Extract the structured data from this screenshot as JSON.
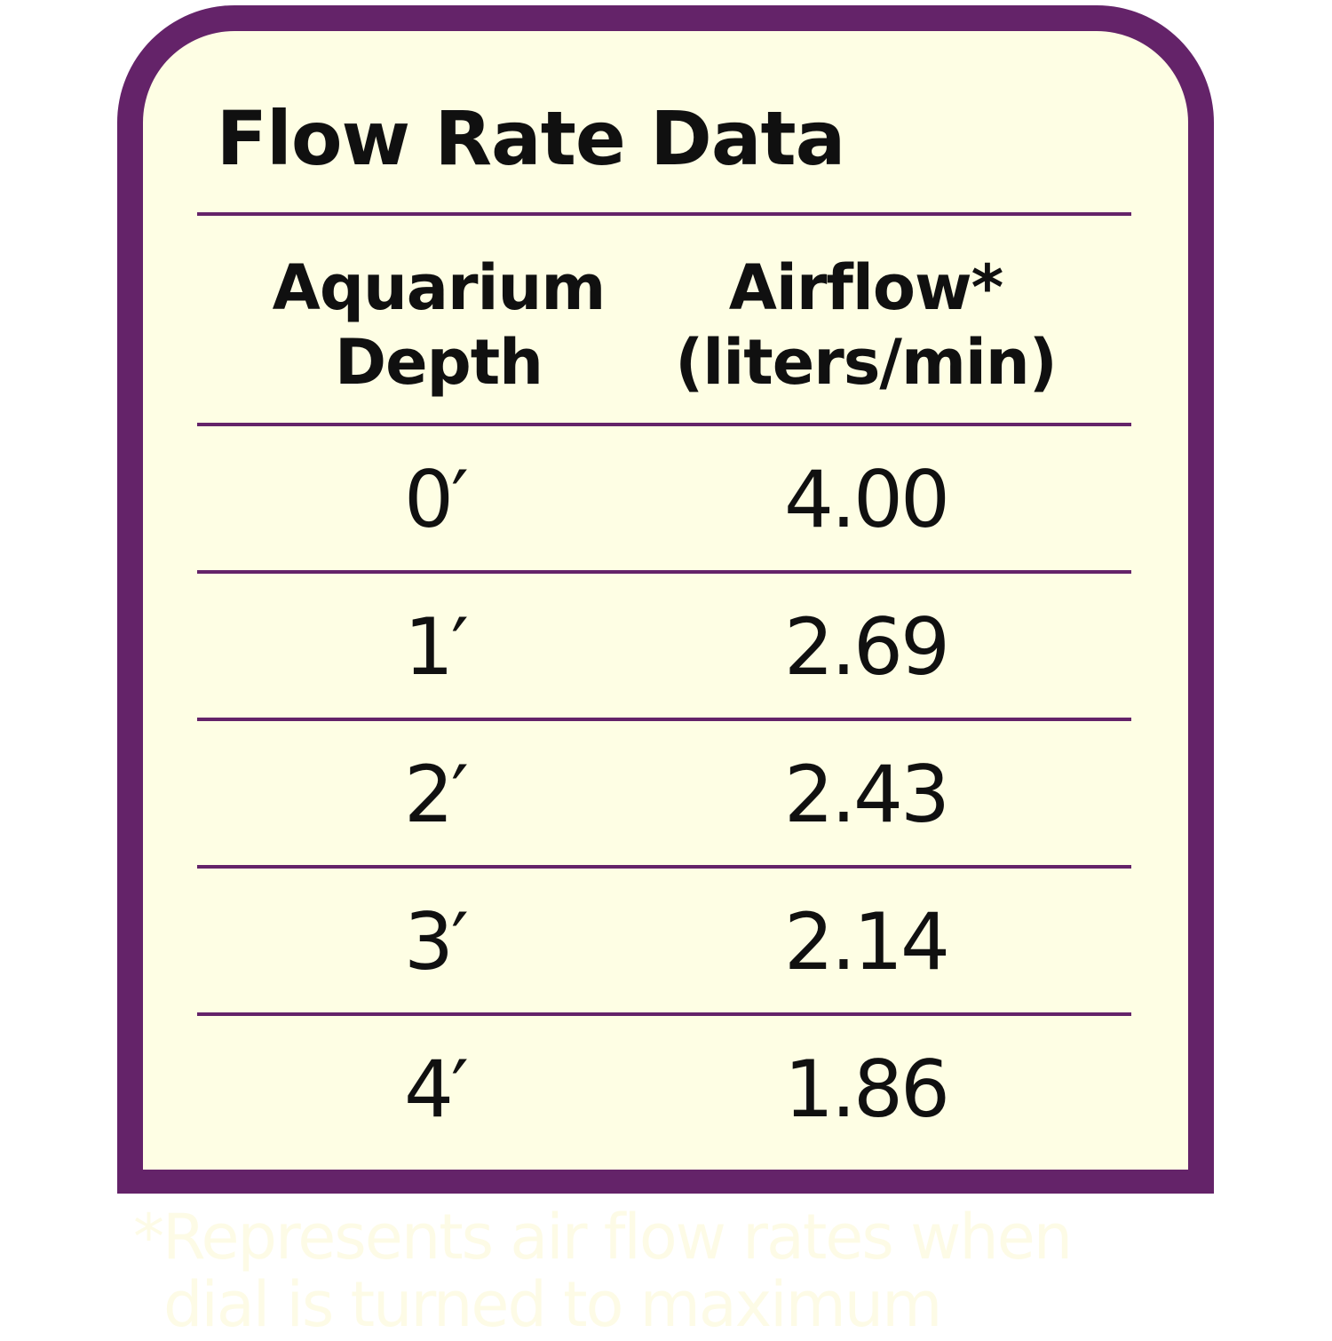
{
  "title": "Flow Rate Data",
  "colors": {
    "border": "#642369",
    "panel_background": "#fefee4",
    "text": "#101010",
    "footnote_text": "#fdfbe6"
  },
  "chart_data": {
    "type": "table",
    "title": "Flow Rate Data",
    "columns": [
      {
        "line1": "Aquarium",
        "line2": "Depth"
      },
      {
        "line1": "Airflow*",
        "line2": "(liters/min)"
      }
    ],
    "rows": [
      {
        "depth": "0′",
        "airflow": "4.00"
      },
      {
        "depth": "1′",
        "airflow": "2.69"
      },
      {
        "depth": "2′",
        "airflow": "2.43"
      },
      {
        "depth": "3′",
        "airflow": "2.14"
      },
      {
        "depth": "4′",
        "airflow": "1.86"
      }
    ]
  },
  "footnote": {
    "line1": "*Represents air flow rates when",
    "line2": "dial is turned to maximum"
  }
}
